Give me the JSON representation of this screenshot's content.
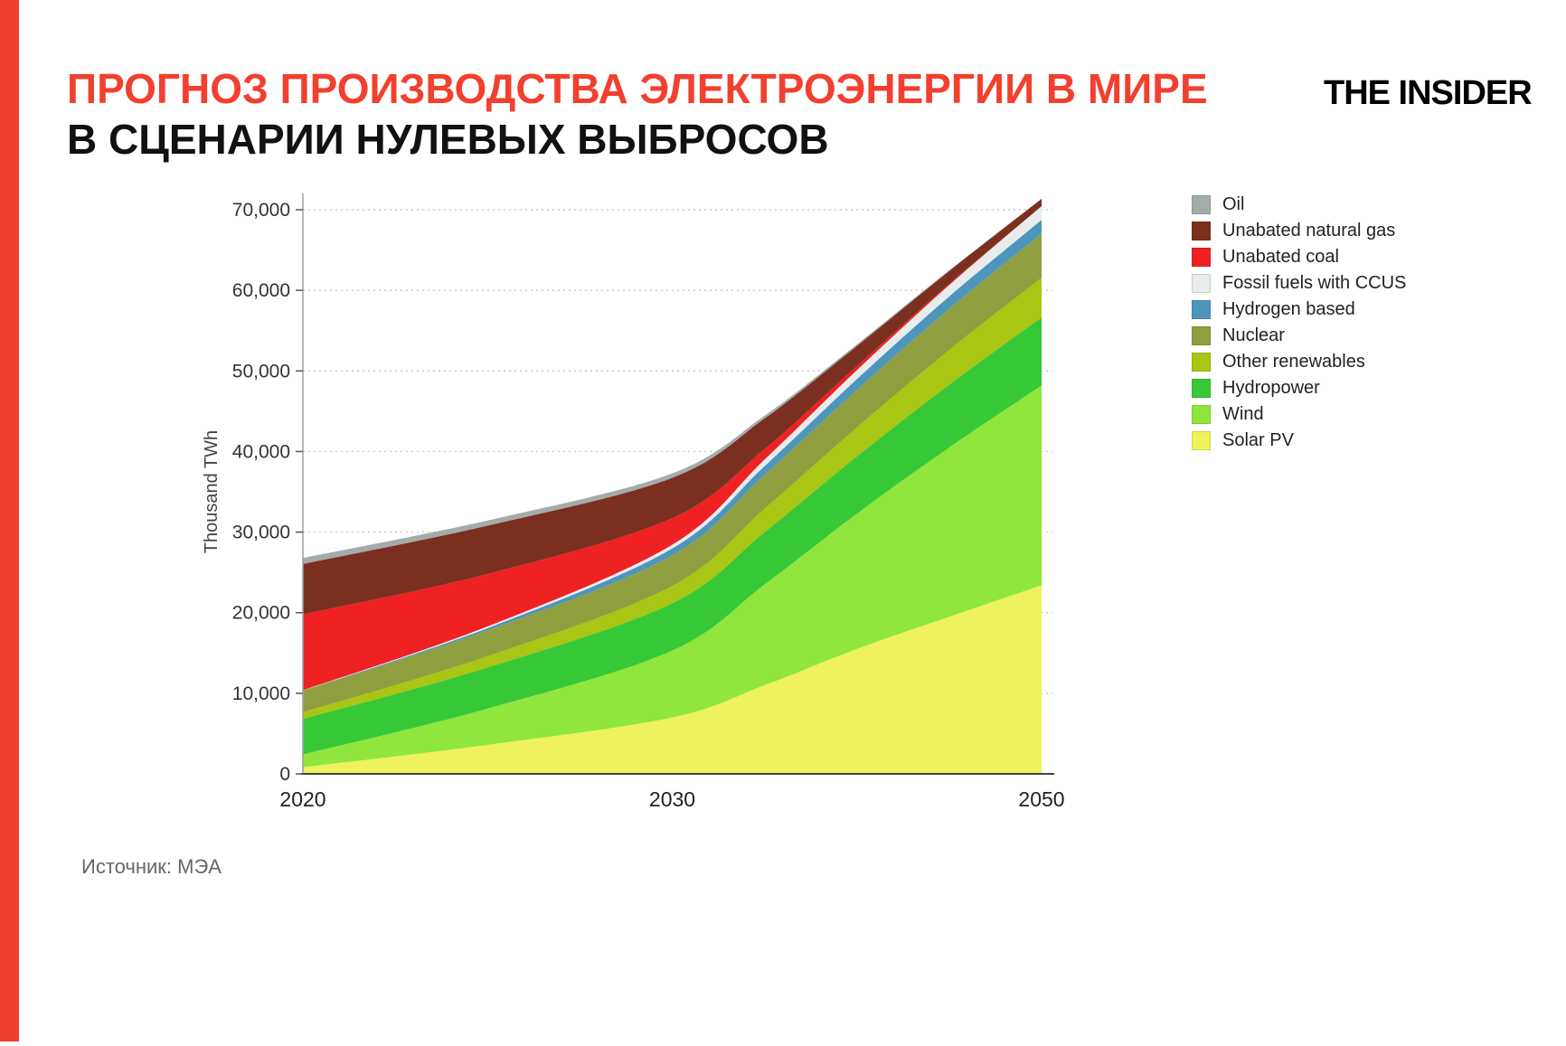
{
  "page": {
    "title_line1": "ПРОГНОЗ ПРОИЗВОДСТВА ЭЛЕКТРОЭНЕРГИИ В МИРЕ",
    "title_line2": "В СЦЕНАРИИ НУЛЕВЫХ ВЫБРОСОВ",
    "logo": "THE INSIDER",
    "source": "Источник: МЭА",
    "accent_color": "#f2402f"
  },
  "chart_data": {
    "type": "area",
    "stacked": true,
    "title": "",
    "xlabel": "",
    "ylabel": "Thousand TWh",
    "ylim": [
      0,
      70000
    ],
    "grid": "horizontal-dotted",
    "legend_position": "right",
    "x_axis_note": "non-linear axis: span 2020-2030 occupies same width as 2030-2050",
    "years": [
      2020,
      2025,
      2030,
      2035,
      2040,
      2045,
      2050
    ],
    "x_ticks": [
      2020,
      2030,
      2050
    ],
    "x_tick_labels": [
      "2020",
      "2030",
      "2050"
    ],
    "y_ticks": [
      0,
      10000,
      20000,
      30000,
      40000,
      50000,
      60000,
      70000
    ],
    "y_tick_labels": [
      "0",
      "10,000",
      "20,000",
      "30,000",
      "40,000",
      "50,000",
      "60,000",
      "70,000"
    ],
    "series": [
      {
        "name": "Oil",
        "color": "#a3abab",
        "values": [
          740,
          640,
          550,
          350,
          200,
          100,
          40
        ]
      },
      {
        "name": "Unabated natural gas",
        "color": "#7b2f1e",
        "values": [
          6250,
          6000,
          5000,
          3800,
          2500,
          1600,
          900
        ]
      },
      {
        "name": "Unabated coal",
        "color": "#ee2222",
        "values": [
          9420,
          6500,
          3300,
          1300,
          500,
          150,
          0
        ]
      },
      {
        "name": "Fossil fuels with CCUS",
        "color": "#e9ecec",
        "values": [
          40,
          200,
          460,
          800,
          1100,
          1400,
          1700
        ]
      },
      {
        "name": "Hydrogen based",
        "color": "#4d95bb",
        "values": [
          0,
          300,
          875,
          1100,
          1350,
          1550,
          1700
        ]
      },
      {
        "name": "Nuclear",
        "color": "#8f9f3f",
        "values": [
          2690,
          3200,
          3780,
          4200,
          4650,
          5100,
          5500
        ]
      },
      {
        "name": "Other renewables",
        "color": "#a9c614",
        "values": [
          820,
          1400,
          2150,
          2900,
          3600,
          4300,
          4900
        ]
      },
      {
        "name": "Hydropower",
        "color": "#37c837",
        "values": [
          4420,
          5100,
          5870,
          6500,
          7100,
          7800,
          8450
        ]
      },
      {
        "name": "Wind",
        "color": "#90e63c",
        "values": [
          1590,
          4500,
          8300,
          12500,
          16800,
          21000,
          24800
        ]
      },
      {
        "name": "Solar PV",
        "color": "#eef25c",
        "values": [
          820,
          3600,
          7000,
          11000,
          15500,
          19500,
          23400
        ]
      }
    ],
    "stack_order_note": "legend order is top of stack first; Solar PV is the bottom band"
  }
}
